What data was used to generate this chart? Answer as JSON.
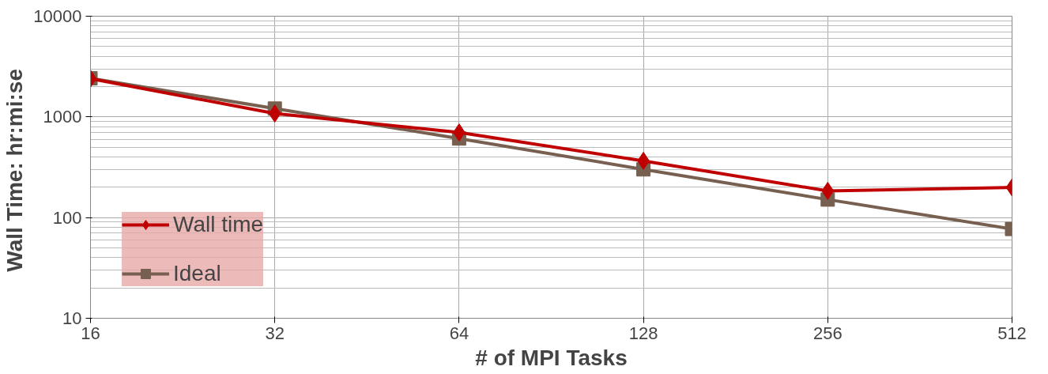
{
  "chart_data": {
    "type": "line",
    "xlabel": "# of MPI Tasks",
    "ylabel": "Wall Time:  hr:mi:se",
    "log": "xy",
    "x": [
      16,
      32,
      64,
      128,
      256,
      512
    ],
    "xlim": [
      16,
      512
    ],
    "xticks": [
      16,
      32,
      64,
      128,
      256,
      512
    ],
    "ylim": [
      10,
      10000
    ],
    "yticks": [
      10,
      100,
      1000,
      10000
    ],
    "grid": true,
    "legend": "bottom left",
    "series": [
      {
        "name": "Wall time",
        "color": "#c00000",
        "marker": "diamond",
        "values": [
          2400,
          1080,
          700,
          366,
          184,
          199
        ]
      },
      {
        "name": "Ideal",
        "color": "#776050",
        "marker": "square",
        "values": [
          2420,
          1210,
          610,
          301,
          151,
          77
        ]
      }
    ]
  }
}
